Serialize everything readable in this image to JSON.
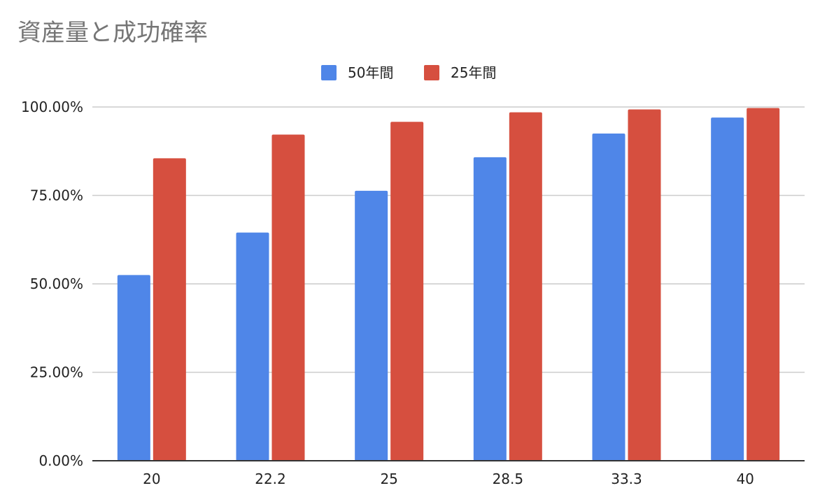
{
  "chart_data": {
    "type": "bar",
    "title": "資産量と成功確率",
    "xlabel": "",
    "ylabel": "",
    "categories": [
      "20",
      "22.2",
      "25",
      "28.5",
      "33.3",
      "40"
    ],
    "series": [
      {
        "name": "50年間",
        "color": "#4f86e8",
        "values": [
          0.525,
          0.645,
          0.763,
          0.858,
          0.925,
          0.97
        ]
      },
      {
        "name": "25年間",
        "color": "#d64f3f",
        "values": [
          0.855,
          0.922,
          0.958,
          0.985,
          0.993,
          0.997
        ]
      }
    ],
    "ylim": [
      0,
      1
    ],
    "yticks": [
      0,
      0.25,
      0.5,
      0.75,
      1
    ],
    "ytick_labels": [
      "0.00%",
      "25.00%",
      "50.00%",
      "75.00%",
      "100.00%"
    ],
    "grid": true,
    "legend_position": "top-center"
  }
}
